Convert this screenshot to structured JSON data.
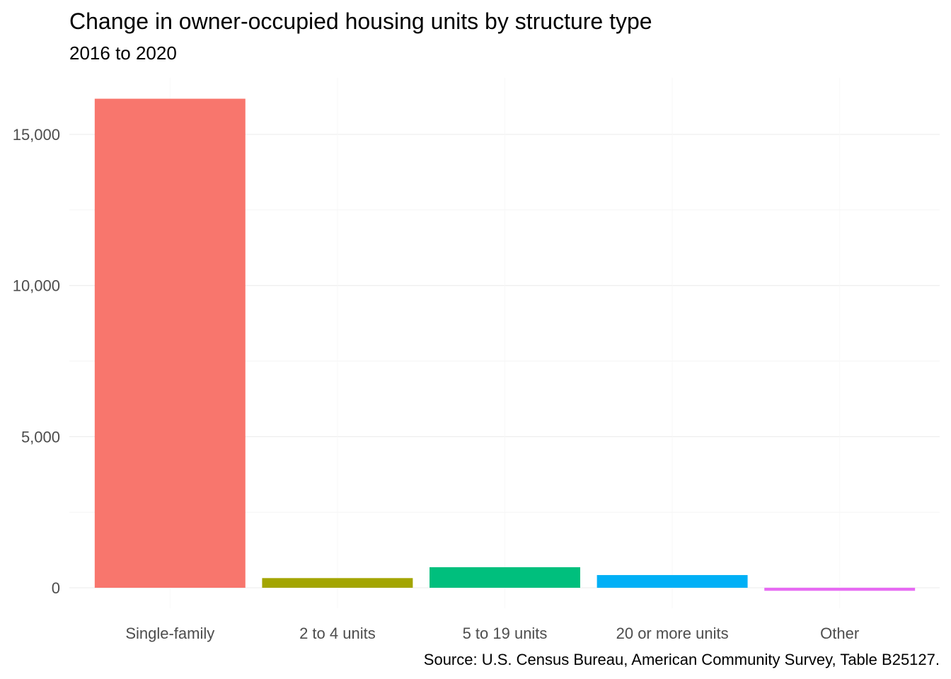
{
  "chart_data": {
    "type": "bar",
    "title": "Change in owner-occupied housing units by structure type",
    "subtitle": "2016 to 2020",
    "caption": "Source: U.S. Census Bureau, American Community Survey, Table B25127.",
    "xlabel": "",
    "ylabel": "",
    "categories": [
      "Single-family",
      "2 to 4 units",
      "5 to 19 units",
      "20 or more units",
      "Other"
    ],
    "values": [
      16180,
      320,
      680,
      420,
      -100
    ],
    "colors": [
      "#F8766D",
      "#A3A500",
      "#00BF7D",
      "#00B0F6",
      "#E76BF3"
    ],
    "ylim": [
      -150,
      16400
    ],
    "y_ticks": [
      0,
      5000,
      10000,
      15000
    ],
    "y_tick_labels": [
      "0",
      "5,000",
      "10,000",
      "15,000"
    ],
    "grid": true,
    "legend": "none"
  }
}
